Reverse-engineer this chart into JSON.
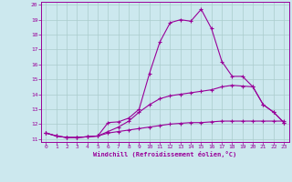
{
  "xlabel": "Windchill (Refroidissement éolien,°C)",
  "x": [
    0,
    1,
    2,
    3,
    4,
    5,
    6,
    7,
    8,
    9,
    10,
    11,
    12,
    13,
    14,
    15,
    16,
    17,
    18,
    19,
    20,
    21,
    22,
    23
  ],
  "line1": [
    11.4,
    11.2,
    11.1,
    11.1,
    11.15,
    11.2,
    12.1,
    12.15,
    12.4,
    13.0,
    15.4,
    17.5,
    18.8,
    19.0,
    18.9,
    19.7,
    18.4,
    16.2,
    15.2,
    15.2,
    14.5,
    13.3,
    12.8,
    12.1
  ],
  "line2": [
    11.4,
    11.2,
    11.1,
    11.1,
    11.15,
    11.2,
    11.5,
    11.8,
    12.2,
    12.8,
    13.3,
    13.7,
    13.9,
    14.0,
    14.1,
    14.2,
    14.3,
    14.5,
    14.6,
    14.55,
    14.5,
    13.3,
    12.8,
    12.1
  ],
  "line3": [
    11.4,
    11.2,
    11.1,
    11.1,
    11.15,
    11.2,
    11.4,
    11.5,
    11.6,
    11.7,
    11.8,
    11.9,
    12.0,
    12.05,
    12.1,
    12.1,
    12.15,
    12.2,
    12.2,
    12.2,
    12.2,
    12.2,
    12.2,
    12.2
  ],
  "line_color": "#990099",
  "bg_color": "#cce8ee",
  "grid_color": "#aacccc",
  "ylim": [
    11,
    20
  ],
  "xlim": [
    0,
    23
  ],
  "yticks": [
    11,
    12,
    13,
    14,
    15,
    16,
    17,
    18,
    19,
    20
  ],
  "xticks": [
    0,
    1,
    2,
    3,
    4,
    5,
    6,
    7,
    8,
    9,
    10,
    11,
    12,
    13,
    14,
    15,
    16,
    17,
    18,
    19,
    20,
    21,
    22,
    23
  ]
}
